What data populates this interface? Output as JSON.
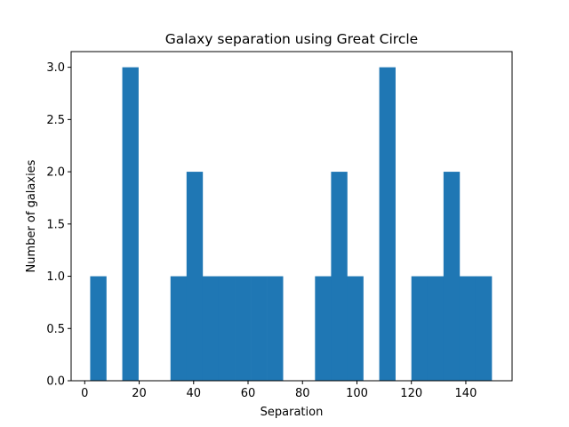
{
  "chart_data": {
    "type": "bar",
    "title": "Galaxy separation using Great Circle",
    "xlabel": "Separation",
    "ylabel": "Number of galaxies",
    "xlim": [
      -5,
      157
    ],
    "ylim": [
      0,
      3.15
    ],
    "xticks": [
      0,
      20,
      40,
      60,
      80,
      100,
      120,
      140
    ],
    "yticks": [
      "0.0",
      "0.5",
      "1.0",
      "1.5",
      "2.0",
      "2.5",
      "3.0"
    ],
    "bin_width": 5.9,
    "bins": [
      {
        "x0": 2.0,
        "value": 1
      },
      {
        "x0": 7.9,
        "value": 0
      },
      {
        "x0": 13.8,
        "value": 3
      },
      {
        "x0": 19.7,
        "value": 0
      },
      {
        "x0": 25.6,
        "value": 0
      },
      {
        "x0": 31.5,
        "value": 1
      },
      {
        "x0": 37.4,
        "value": 2
      },
      {
        "x0": 43.3,
        "value": 1
      },
      {
        "x0": 49.2,
        "value": 1
      },
      {
        "x0": 55.1,
        "value": 1
      },
      {
        "x0": 61.0,
        "value": 1
      },
      {
        "x0": 66.9,
        "value": 1
      },
      {
        "x0": 72.8,
        "value": 0
      },
      {
        "x0": 78.7,
        "value": 0
      },
      {
        "x0": 84.6,
        "value": 1
      },
      {
        "x0": 90.5,
        "value": 2
      },
      {
        "x0": 96.4,
        "value": 1
      },
      {
        "x0": 102.3,
        "value": 0
      },
      {
        "x0": 108.2,
        "value": 3
      },
      {
        "x0": 114.1,
        "value": 0
      },
      {
        "x0": 120.0,
        "value": 1
      },
      {
        "x0": 125.9,
        "value": 1
      },
      {
        "x0": 131.8,
        "value": 2
      },
      {
        "x0": 137.7,
        "value": 1
      },
      {
        "x0": 143.6,
        "value": 1
      }
    ],
    "bar_color": "#1f77b4",
    "grid": false
  }
}
